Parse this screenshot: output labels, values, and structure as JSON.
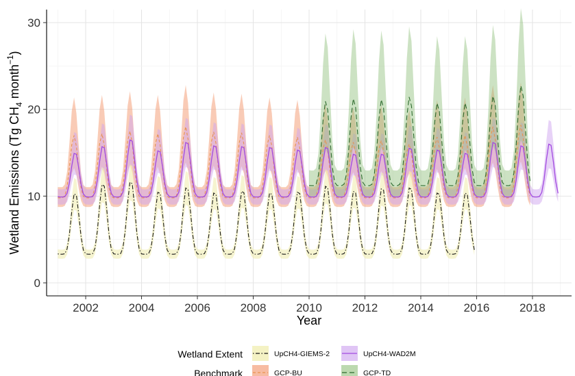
{
  "chart_data": {
    "type": "line",
    "xlabel": "Year",
    "ylabel_parts": [
      "Wetland Emissions (Tg CH",
      "4",
      " month",
      "−1",
      ")"
    ],
    "xlim": [
      2000.6,
      2019.4
    ],
    "ylim": [
      -1.5,
      31.5
    ],
    "x_ticks": [
      2002,
      2004,
      2006,
      2008,
      2010,
      2012,
      2014,
      2016,
      2018
    ],
    "y_ticks": [
      0,
      10,
      20,
      30
    ],
    "grid": true,
    "legend_placement": "bottom",
    "legend": {
      "groups": [
        {
          "title": "Wetland Extent",
          "entries": [
            {
              "label": "UpCH4-GIEMS-2",
              "series": "giems2"
            },
            {
              "label": "UpCH4-WAD2M",
              "series": "wad2m"
            }
          ]
        },
        {
          "title": "Benchmark",
          "entries": [
            {
              "label": "GCP-BU",
              "series": "gcpbu"
            },
            {
              "label": "GCP-TD",
              "series": "gcptd"
            }
          ]
        }
      ]
    },
    "series": [
      {
        "key": "gcpbu",
        "line_style": "dashed",
        "line_color": "#e8934f",
        "band_color": "#f4a07a",
        "band_opacity": 0.55,
        "start_year": 2001,
        "end_year": 2018,
        "peak_month_offset": 0.58,
        "base": 9.8,
        "peaks": [
          17.0,
          17.2,
          17.5,
          17.2,
          18.0,
          17.4,
          17.3,
          17.0,
          16.8,
          16.5,
          16.2,
          16.4,
          16.0,
          16.8,
          17.0,
          18.0,
          18.2
        ],
        "band_low": -3.0,
        "band_high": 3.5
      },
      {
        "key": "wad2m",
        "line_style": "solid",
        "line_color": "#a24ae0",
        "band_color": "#cfa6f0",
        "band_opacity": 0.5,
        "start_year": 2001,
        "end_year": 2019,
        "peak_month_offset": 0.62,
        "base": 9.9,
        "peaks": [
          15.1,
          15.9,
          16.7,
          15.4,
          16.4,
          16.0,
          15.9,
          15.8,
          15.5,
          15.8,
          15.0,
          15.0,
          15.7,
          15.5,
          15.1,
          16.4,
          16.0,
          16.2
        ],
        "band_low": -2.5,
        "band_high": 2.5
      },
      {
        "key": "gcptd",
        "line_style": "longdash",
        "line_color": "#2d6a2d",
        "band_color": "#8fbf7a",
        "band_opacity": 0.45,
        "start_year": 2010,
        "end_year": 2018,
        "peak_month_offset": 0.6,
        "base": 11.2,
        "peaks": [
          21.0,
          21.3,
          21.2,
          21.5,
          20.8,
          20.8,
          21.6,
          22.8
        ],
        "band_low": -3.5,
        "band_high": 5.0
      },
      {
        "key": "giems2",
        "line_style": "dotdash",
        "line_color": "#1a1a1a",
        "band_color": "#f0edb0",
        "band_opacity": 0.6,
        "start_year": 2001,
        "end_year": 2016,
        "peak_month_offset": 0.62,
        "base": 3.3,
        "peaks": [
          10.5,
          11.6,
          11.9,
          10.7,
          11.2,
          10.6,
          10.8,
          10.6,
          10.7,
          11.4,
          10.8,
          11.1,
          11.2,
          10.6,
          10.6
        ],
        "band_low": -1.5,
        "band_high": 1.5
      }
    ]
  }
}
